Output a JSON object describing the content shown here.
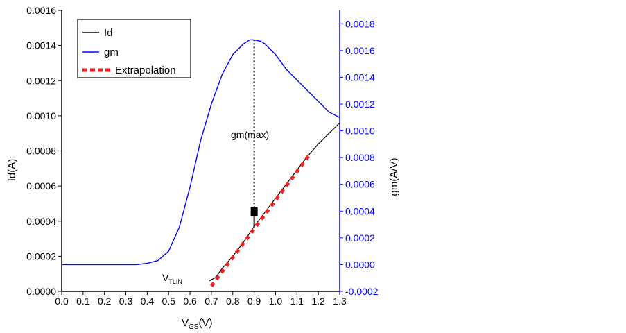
{
  "chart_data": {
    "type": "line",
    "xlabel_main": "V",
    "xlabel_sub": "GS",
    "xlabel_unit": "(V)",
    "ylabel_left": "Id(A)",
    "ylabel_right": "gm(A/V)",
    "xlim": [
      0.0,
      1.3
    ],
    "ylim_left": [
      0.0,
      0.0016
    ],
    "ylim_right": [
      -0.0002,
      0.0019
    ],
    "x_ticks": [
      "0.0",
      "0.1",
      "0.2",
      "0.3",
      "0.4",
      "0.5",
      "0.6",
      "0.7",
      "0.8",
      "0.9",
      "1.0",
      "1.1",
      "1.2",
      "1.3"
    ],
    "y_left_ticks": [
      "0.0000",
      "0.0002",
      "0.0004",
      "0.0006",
      "0.0008",
      "0.0010",
      "0.0012",
      "0.0014",
      "0.0016"
    ],
    "y_right_ticks": [
      "-0.0002",
      "0.0000",
      "0.0002",
      "0.0004",
      "0.0006",
      "0.0008",
      "0.0010",
      "0.0012",
      "0.0014",
      "0.0016",
      "0.0018"
    ],
    "legend": [
      {
        "name": "Id",
        "color": "#000000",
        "style": "solid"
      },
      {
        "name": "gm",
        "color": "#0000ff",
        "style": "solid"
      },
      {
        "name": "Extrapolation",
        "color": "#ee2222",
        "style": "dashed"
      }
    ],
    "legend_position": "top-left",
    "series": [
      {
        "name": "Id",
        "axis": "left",
        "color": "#000000",
        "x": [
          0.69,
          0.72,
          0.75,
          0.8,
          0.85,
          0.9,
          0.95,
          1.0,
          1.05,
          1.1,
          1.15,
          1.2,
          1.25,
          1.3
        ],
        "y": [
          6e-05,
          8e-05,
          0.00013,
          0.0002,
          0.00028,
          0.00037,
          0.00045,
          0.00053,
          0.00061,
          0.00069,
          0.00077,
          0.00084,
          0.0009,
          0.00096
        ]
      },
      {
        "name": "gm",
        "axis": "right",
        "color": "#0000ff",
        "x": [
          0.0,
          0.1,
          0.2,
          0.3,
          0.35,
          0.4,
          0.45,
          0.5,
          0.55,
          0.6,
          0.65,
          0.7,
          0.75,
          0.8,
          0.85,
          0.88,
          0.9,
          0.93,
          0.95,
          1.0,
          1.05,
          1.1,
          1.15,
          1.2,
          1.25,
          1.3
        ],
        "y": [
          0.0,
          0.0,
          0.0,
          0.0,
          0.0,
          1e-05,
          3e-05,
          0.0001,
          0.00028,
          0.00058,
          0.00093,
          0.0012,
          0.00142,
          0.00157,
          0.00165,
          0.00168,
          0.00168,
          0.00167,
          0.00165,
          0.00157,
          0.00146,
          0.00138,
          0.0013,
          0.00122,
          0.00114,
          0.0011
        ]
      },
      {
        "name": "Extrapolation",
        "axis": "left",
        "color": "#ee2222",
        "x": [
          0.7,
          1.16
        ],
        "y": [
          3e-05,
          0.00078
        ]
      }
    ],
    "annotations": {
      "gm_max_label": "gm(max)",
      "gm_max_x": 0.9,
      "gm_max_top_y_right": 0.00168,
      "marker_y_left": 0.00045,
      "vt_label_main": "V",
      "vt_label_sub": "TLIN"
    }
  }
}
